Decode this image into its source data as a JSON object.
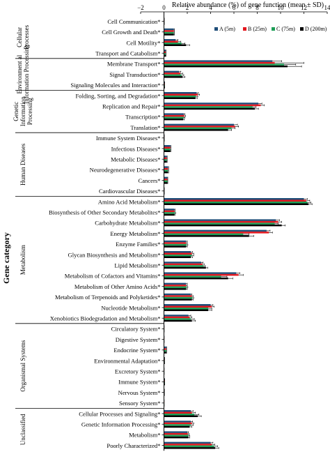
{
  "chart_data": {
    "type": "bar",
    "orientation": "horizontal",
    "title": "",
    "xlabel": "Relative abundance (%) of gene function (mean ± SD)",
    "ylabel": "Gene category",
    "xlim": [
      -2,
      14
    ],
    "xticks": [
      -2,
      0,
      2,
      4,
      6,
      8,
      10,
      12,
      14
    ],
    "grid": false,
    "legend_position": "top-right",
    "groups": [
      {
        "label": "Cellular Processes",
        "start": 0,
        "end": 4
      },
      {
        "label": "Environment al Information Processing",
        "start": 4,
        "end": 7
      },
      {
        "label": "Genetic Information Processing",
        "start": 7,
        "end": 11
      },
      {
        "label": "Human Diseases",
        "start": 11,
        "end": 17
      },
      {
        "label": "Metabolism",
        "start": 17,
        "end": 29
      },
      {
        "label": "Organismal Systems",
        "start": 29,
        "end": 37
      },
      {
        "label": "Unclassified",
        "start": 37,
        "end": 41
      }
    ],
    "categories": [
      "Cell Communication*",
      "Cell Growth and Death*",
      "Cell Motility*",
      "Transport and Catabolism*",
      "Membrane Transport*",
      "Signal Transduction*",
      "Signaling Molecules and Interaction*",
      "Folding, Sorting, and Degradation*",
      "Replication and Repair*",
      "Transcription*",
      "Translation*",
      "Immune System Diseases*",
      "Infectious Diseases*",
      "Metabolic Diseases*",
      "Neurodegenerative Diseases*",
      "Cancers*",
      "Cardiovascular Diseases*",
      "Amino Acid Metabolism*",
      "Biosynthesis of Other Secondary Metabolites*",
      "Carbohydrate Metabolism*",
      "Energy Metabolism*",
      "Enzyme Families*",
      "Glycan Biosynthesis and Metabolism*",
      "Lipid Metabolism*",
      "Metabolism of Cofactors and Vitamins*",
      "Metabolism of Other Amino Acids*",
      "Metabolism of Terpenoids and Polyketides*",
      "Nucleotide Metabolism*",
      "Xenobiotics Biodegradation and Metabolism*",
      "Circulatory System*",
      "Digestive System*",
      "Endocrine System*",
      "Environmental Adaptation*",
      "Excretory System*",
      "Immune System*",
      "Nervous System*",
      "Sensory System*",
      "Cellular Processes and Signaling*",
      "Genetic Information Processing*",
      "Metabolism*",
      "Poorly Characterized*"
    ],
    "series": [
      {
        "name": "A (5m)",
        "color": "#1f4e79",
        "values": [
          0.02,
          0.85,
          1.0,
          0.15,
          9.3,
          1.3,
          0.05,
          2.8,
          8.1,
          1.7,
          6.0,
          0.02,
          0.55,
          0.25,
          0.35,
          0.3,
          0.02,
          12.0,
          0.9,
          9.6,
          8.8,
          1.9,
          2.3,
          3.2,
          6.2,
          1.9,
          2.3,
          4.0,
          2.1,
          0.01,
          0.01,
          0.2,
          0.05,
          0.01,
          0.05,
          0.03,
          0.01,
          2.3,
          2.3,
          2.0,
          4.0
        ],
        "errors": [
          0.01,
          0.05,
          0.2,
          0.03,
          0.8,
          0.15,
          0.02,
          0.15,
          0.3,
          0.1,
          0.3,
          0.01,
          0.05,
          0.03,
          0.05,
          0.03,
          0.01,
          0.3,
          0.05,
          0.3,
          0.3,
          0.1,
          0.15,
          0.15,
          0.3,
          0.1,
          0.1,
          0.2,
          0.2,
          0.01,
          0.01,
          0.03,
          0.01,
          0.01,
          0.02,
          0.01,
          0.01,
          0.2,
          0.15,
          0.1,
          0.2
        ]
      },
      {
        "name": "B (25m)",
        "color": "#e3171e",
        "values": [
          0.02,
          0.85,
          1.2,
          0.15,
          9.5,
          1.4,
          0.05,
          2.9,
          8.3,
          1.75,
          6.1,
          0.02,
          0.55,
          0.25,
          0.35,
          0.3,
          0.02,
          12.2,
          0.9,
          9.8,
          9.0,
          1.9,
          2.4,
          3.3,
          6.4,
          1.9,
          2.4,
          4.1,
          2.2,
          0.01,
          0.01,
          0.2,
          0.05,
          0.01,
          0.05,
          0.03,
          0.01,
          2.4,
          2.4,
          2.05,
          4.1
        ],
        "errors": [
          0.01,
          0.05,
          0.25,
          0.03,
          2.5,
          0.2,
          0.02,
          0.15,
          0.3,
          0.1,
          0.3,
          0.01,
          0.05,
          0.03,
          0.05,
          0.03,
          0.01,
          0.3,
          0.05,
          0.3,
          0.3,
          0.1,
          0.15,
          0.15,
          0.4,
          0.1,
          0.1,
          0.2,
          0.2,
          0.01,
          0.01,
          0.03,
          0.01,
          0.01,
          0.02,
          0.01,
          0.01,
          0.3,
          0.15,
          0.1,
          0.25
        ]
      },
      {
        "name": "C (75m)",
        "color": "#1e9e57",
        "values": [
          0.02,
          0.85,
          1.5,
          0.15,
          10.3,
          1.5,
          0.05,
          2.75,
          7.6,
          1.7,
          5.8,
          0.02,
          0.55,
          0.25,
          0.35,
          0.3,
          0.02,
          12.3,
          0.95,
          9.5,
          6.8,
          1.95,
          2.4,
          3.4,
          4.9,
          1.95,
          2.45,
          3.8,
          2.3,
          0.01,
          0.01,
          0.2,
          0.05,
          0.01,
          0.05,
          0.03,
          0.01,
          2.6,
          2.3,
          2.1,
          4.3
        ],
        "errors": [
          0.01,
          0.05,
          0.3,
          0.03,
          1.0,
          0.2,
          0.02,
          0.15,
          0.3,
          0.1,
          0.3,
          0.01,
          0.05,
          0.03,
          0.05,
          0.03,
          0.01,
          0.3,
          0.05,
          0.3,
          0.5,
          0.1,
          0.15,
          0.15,
          0.5,
          0.1,
          0.1,
          0.3,
          0.3,
          0.01,
          0.01,
          0.03,
          0.01,
          0.01,
          0.02,
          0.01,
          0.01,
          0.4,
          0.2,
          0.1,
          0.3
        ]
      },
      {
        "name": "D (200m)",
        "color": "#000000",
        "values": [
          0.02,
          0.85,
          1.9,
          0.15,
          10.6,
          1.6,
          0.05,
          2.7,
          7.8,
          1.65,
          5.5,
          0.02,
          0.55,
          0.25,
          0.35,
          0.3,
          0.02,
          12.4,
          0.9,
          10.1,
          7.3,
          1.9,
          2.3,
          3.6,
          5.5,
          1.9,
          2.4,
          3.8,
          2.4,
          0.01,
          0.01,
          0.2,
          0.05,
          0.01,
          0.05,
          0.03,
          0.01,
          2.9,
          2.2,
          2.1,
          4.4
        ],
        "errors": [
          0.01,
          0.05,
          0.3,
          0.03,
          1.2,
          0.2,
          0.02,
          0.15,
          0.3,
          0.1,
          0.3,
          0.01,
          0.05,
          0.03,
          0.05,
          0.03,
          0.01,
          0.3,
          0.05,
          0.3,
          0.4,
          0.1,
          0.15,
          0.15,
          0.4,
          0.1,
          0.1,
          0.3,
          0.3,
          0.01,
          0.01,
          0.03,
          0.01,
          0.01,
          0.02,
          0.01,
          0.01,
          0.3,
          0.2,
          0.1,
          0.3
        ]
      }
    ]
  }
}
